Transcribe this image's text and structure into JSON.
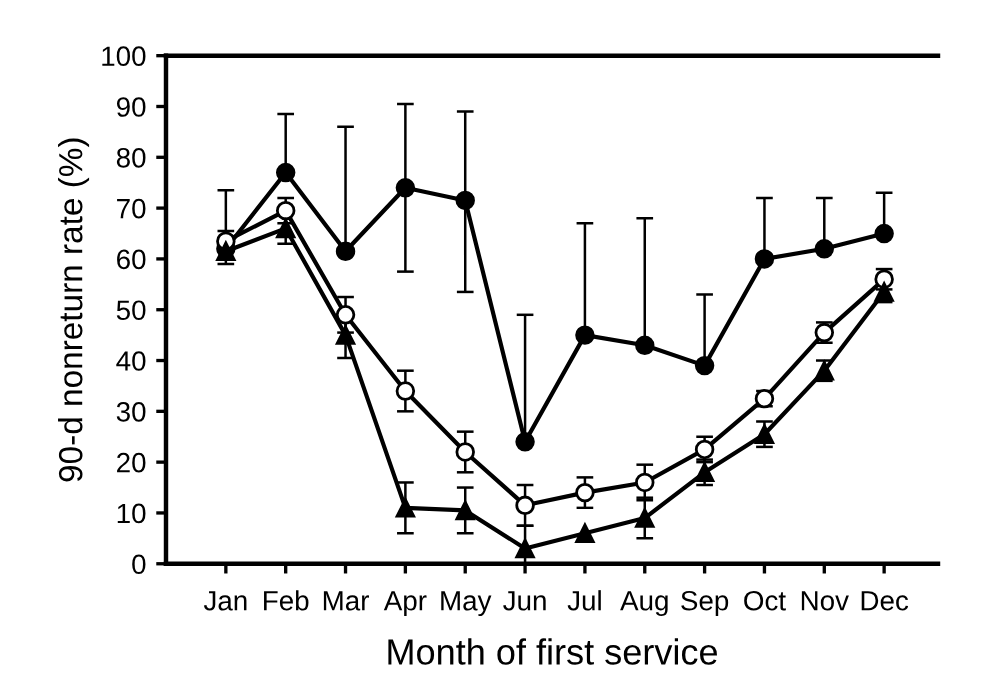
{
  "chart_data": {
    "type": "line",
    "xlabel": "Month of first service",
    "ylabel": "90-d nonreturn rate (%)",
    "categories": [
      "Jan",
      "Feb",
      "Mar",
      "Apr",
      "May",
      "Jun",
      "Jul",
      "Aug",
      "Sep",
      "Oct",
      "Nov",
      "Dec"
    ],
    "series": [
      {
        "color": "#000000",
        "marker": "circle",
        "values": [
          62,
          77,
          61.5,
          74,
          71.5,
          24,
          45,
          43,
          39,
          60,
          62,
          65
        ],
        "errors": [
          [
            62,
            73.5
          ],
          [
            77,
            88.5
          ],
          [
            61.5,
            86
          ],
          [
            57.5,
            90.5
          ],
          [
            53.5,
            89
          ],
          [
            24,
            49
          ],
          [
            45,
            67
          ],
          [
            43,
            68
          ],
          [
            39,
            53
          ],
          [
            60,
            72
          ],
          [
            62,
            72
          ],
          [
            65,
            73
          ]
        ]
      },
      {
        "color": "#ffffff",
        "marker": "circle",
        "values": [
          63.5,
          69.5,
          49,
          34,
          22,
          11.5,
          14,
          16,
          22.5,
          32.5,
          45.5,
          56
        ],
        "errors": [
          2,
          2.5,
          3.5,
          4,
          4,
          4,
          3,
          3.5,
          2.5,
          1.5,
          2,
          2
        ]
      },
      {
        "color": "#000000",
        "marker": "triangle",
        "values": [
          61.5,
          66,
          45,
          11,
          10.5,
          3,
          6,
          9,
          18,
          25.5,
          38,
          53.5
        ],
        "errors": [
          2.5,
          3,
          4.5,
          5,
          4.5,
          4.5,
          null,
          4,
          2.5,
          2.5,
          2,
          2
        ]
      }
    ],
    "ylim": [
      0,
      100
    ],
    "yticks": [
      0,
      10,
      20,
      30,
      40,
      50,
      60,
      70,
      80,
      90,
      100
    ],
    "grid": false,
    "legend": false,
    "line_style": "solid"
  }
}
